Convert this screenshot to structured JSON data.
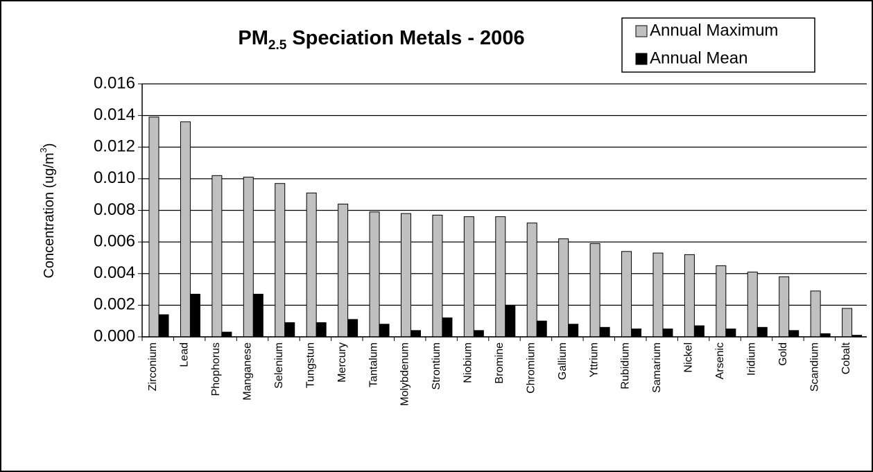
{
  "chart_data": {
    "type": "bar",
    "title": {
      "main": "PM",
      "subscript": "2.5",
      "rest": "Speciation Metals - 2006"
    },
    "y_label": {
      "main": "Concentration (ug/m",
      "superscript": "3",
      "rest": ")"
    },
    "categories": [
      "Zirconium",
      "Lead",
      "Phophorus",
      "Manganese",
      "Selenium",
      "Tungstun",
      "Mercury",
      "Tantalum",
      "Molybdenum",
      "Strontium",
      "Niobium",
      "Bromine",
      "Chromium",
      "Gallium",
      "Yttrium",
      "Rubidium",
      "Samarium",
      "Nickel",
      "Arsenic",
      "Iridium",
      "Gold",
      "Scandium",
      "Cobalt"
    ],
    "series": [
      {
        "name": "Annual Maximum",
        "color": "#c0c0c0",
        "values": [
          0.0139,
          0.0136,
          0.0102,
          0.0101,
          0.0097,
          0.0091,
          0.0084,
          0.0079,
          0.0078,
          0.0077,
          0.0076,
          0.0076,
          0.0072,
          0.0062,
          0.0059,
          0.0054,
          0.0053,
          0.0052,
          0.0045,
          0.0041,
          0.0038,
          0.0029,
          0.0018
        ]
      },
      {
        "name": "Annual Mean",
        "color": "#000000",
        "values": [
          0.0014,
          0.0027,
          0.0003,
          0.0027,
          0.0009,
          0.0009,
          0.0011,
          0.0008,
          0.0004,
          0.0012,
          0.0004,
          0.002,
          0.001,
          0.0008,
          0.0006,
          0.0005,
          0.0005,
          0.0007,
          0.0005,
          0.0006,
          0.0004,
          0.0002,
          0.0001
        ]
      }
    ],
    "ylim": [
      0,
      0.016
    ],
    "yticks": [
      {
        "value": 0,
        "label": "0.000"
      },
      0.002,
      0.004,
      0.006,
      0.008,
      {
        "value": 0.01,
        "label": "0.010"
      },
      0.012,
      0.014,
      0.016
    ],
    "grid": true,
    "legend": "top-right"
  }
}
